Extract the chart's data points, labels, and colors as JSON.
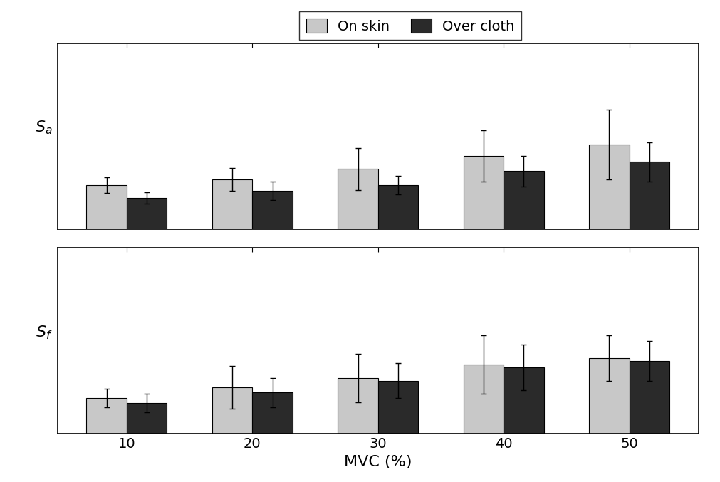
{
  "categories": [
    10,
    20,
    30,
    40,
    50
  ],
  "sa_skin_vals": [
    0.38,
    0.43,
    0.52,
    0.63,
    0.73
  ],
  "sa_cloth_vals": [
    0.27,
    0.33,
    0.38,
    0.5,
    0.58
  ],
  "sa_skin_err": [
    0.07,
    0.1,
    0.18,
    0.22,
    0.3
  ],
  "sa_cloth_err": [
    0.05,
    0.08,
    0.08,
    0.13,
    0.17
  ],
  "sf_skin_vals": [
    0.27,
    0.35,
    0.42,
    0.52,
    0.57
  ],
  "sf_cloth_vals": [
    0.23,
    0.31,
    0.4,
    0.5,
    0.55
  ],
  "sf_skin_err": [
    0.07,
    0.16,
    0.18,
    0.22,
    0.17
  ],
  "sf_cloth_err": [
    0.07,
    0.11,
    0.13,
    0.17,
    0.15
  ],
  "color_skin": "#c8c8c8",
  "color_cloth": "#2a2a2a",
  "bar_width": 0.32,
  "xlabel": "MVC (%)",
  "ylabel_top": "$S_a$",
  "ylabel_bottom": "$S_f$",
  "legend_skin": "On skin",
  "legend_cloth": "Over cloth",
  "tick_fontsize": 14,
  "label_fontsize": 16,
  "legend_fontsize": 14,
  "edgecolor": "#000000",
  "sa_ylim": [
    0,
    1.6
  ],
  "sf_ylim": [
    0,
    1.4
  ]
}
